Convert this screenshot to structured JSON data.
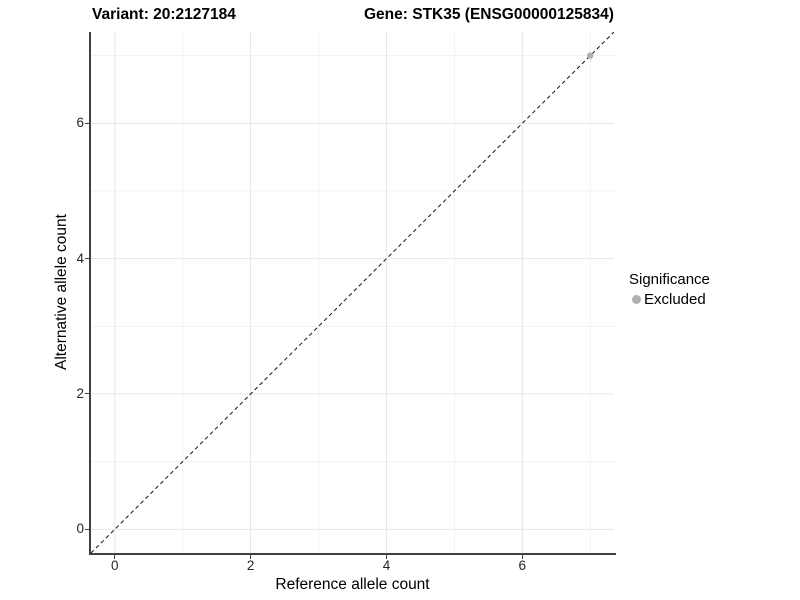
{
  "title": {
    "variant": "Variant: 20:2127184",
    "gene": "Gene: STK35 (ENSG00000125834)"
  },
  "axes": {
    "x": {
      "label": "Reference allele count"
    },
    "y": {
      "label": "Alternative allele count"
    }
  },
  "legend": {
    "title": "Significance",
    "items": [
      {
        "label": "Excluded",
        "color": "#b0b0b0"
      }
    ]
  },
  "colors": {
    "background": "#ffffff",
    "axis_line": "#404040",
    "major_gridline": "#e6e6e6",
    "minor_gridline": "#f1f1f1",
    "reference_line": "#141414",
    "excluded_point": "#b0b0b0"
  },
  "chart_data": {
    "type": "scatter",
    "title": "Variant: 20:2127184    Gene: STK35 (ENSG00000125834)",
    "xlabel": "Reference allele count",
    "ylabel": "Alternative allele count",
    "xlim": [
      -0.35,
      7.35
    ],
    "ylim": [
      -0.35,
      7.35
    ],
    "x_ticks": [
      0,
      2,
      4,
      6
    ],
    "y_ticks": [
      0,
      2,
      4,
      6
    ],
    "x_minor_gridlines": [
      1,
      3,
      5,
      7
    ],
    "y_minor_gridlines": [
      1,
      3,
      5,
      7
    ],
    "grid": true,
    "legend_position": "right",
    "legend_title": "Significance",
    "series": [
      {
        "name": "Excluded",
        "color": "#b0b0b0",
        "points": [
          {
            "x": 7,
            "y": 7
          }
        ]
      }
    ],
    "reference_line": {
      "type": "identity",
      "slope": 1,
      "intercept": 0,
      "style": "dashed",
      "color": "#141414"
    }
  }
}
